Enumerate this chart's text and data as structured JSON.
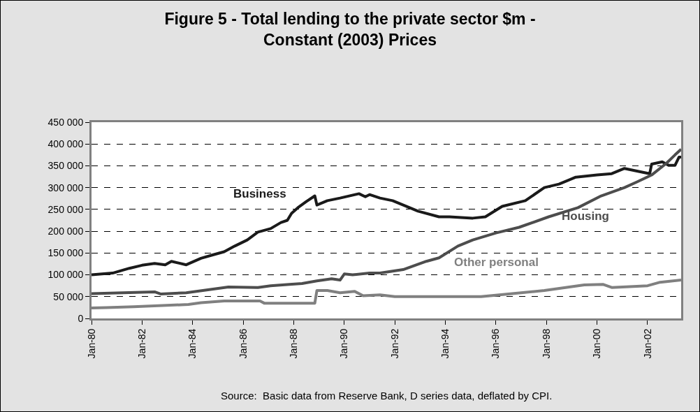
{
  "chart_data": {
    "type": "line",
    "title": "Figure 5 - Total lending to the private sector $m -\nConstant (2003) Prices",
    "annotations": [
      "Source:  Basic data from Reserve Bank, D series data, deflated by CPI."
    ],
    "xlim": [
      "1980-01",
      "2003-05"
    ],
    "xticks": [
      {
        "value": "1980-01",
        "label": "Jan-80"
      },
      {
        "value": "1982-01",
        "label": "Jan-82"
      },
      {
        "value": "1984-01",
        "label": "Jan-84"
      },
      {
        "value": "1986-01",
        "label": "Jan-86"
      },
      {
        "value": "1988-01",
        "label": "Jan-88"
      },
      {
        "value": "1990-01",
        "label": "Jan-90"
      },
      {
        "value": "1992-01",
        "label": "Jan-92"
      },
      {
        "value": "1994-01",
        "label": "Jan-94"
      },
      {
        "value": "1996-01",
        "label": "Jan-96"
      },
      {
        "value": "1998-01",
        "label": "Jan-98"
      },
      {
        "value": "2000-01",
        "label": "Jan-00"
      },
      {
        "value": "2002-01",
        "label": "Jan-02"
      }
    ],
    "ylim": [
      0,
      450000
    ],
    "yticks": [
      {
        "value": 0,
        "label": "0"
      },
      {
        "value": 50000,
        "label": "50 000"
      },
      {
        "value": 100000,
        "label": "100 000"
      },
      {
        "value": 150000,
        "label": "150 000"
      },
      {
        "value": 200000,
        "label": "200 000"
      },
      {
        "value": 250000,
        "label": "250 000"
      },
      {
        "value": 300000,
        "label": "300 000"
      },
      {
        "value": 350000,
        "label": "350 000"
      },
      {
        "value": 400000,
        "label": "400 000"
      },
      {
        "value": 450000,
        "label": "450 000"
      }
    ],
    "grid": "y",
    "legend": false,
    "line_style": "solid",
    "marker": "none",
    "series": [
      {
        "name": "Business",
        "color": "#1a1a1a",
        "x": [
          "1980-01",
          "1980-11",
          "1981-07",
          "1982-01",
          "1982-07",
          "1982-12",
          "1983-03",
          "1983-10",
          "1984-05",
          "1984-10",
          "1985-04",
          "1985-09",
          "1986-03",
          "1986-08",
          "1987-02",
          "1987-07",
          "1987-10",
          "1987-12",
          "1988-03",
          "1988-07",
          "1988-11",
          "1988-12",
          "1989-05",
          "1989-11",
          "1990-08",
          "1990-11",
          "1991-01",
          "1991-06",
          "1991-12",
          "1992-09",
          "1992-12",
          "1993-10",
          "1994-03",
          "1995-02",
          "1995-08",
          "1996-04",
          "1997-03",
          "1997-12",
          "1998-07",
          "1999-03",
          "2000-01",
          "2000-08",
          "2001-02",
          "2001-08",
          "2002-02",
          "2002-03",
          "2002-08",
          "2002-11",
          "2003-02",
          "2003-04",
          "2003-05"
        ],
        "values": [
          100000,
          104000,
          115000,
          122000,
          126000,
          123000,
          131000,
          123000,
          138000,
          145000,
          153000,
          166000,
          180000,
          198000,
          206000,
          220000,
          225000,
          241000,
          254000,
          268000,
          281000,
          260000,
          270000,
          276000,
          286000,
          279000,
          284000,
          276000,
          270000,
          252000,
          246000,
          233000,
          233000,
          230000,
          233000,
          257000,
          270000,
          300000,
          308000,
          324000,
          329000,
          332000,
          344000,
          338000,
          332000,
          354000,
          359000,
          351000,
          351000,
          370000,
          370000
        ]
      },
      {
        "name": "Housing",
        "color": "#4d4d4d",
        "x": [
          "1980-01",
          "1982-07",
          "1982-10",
          "1983-10",
          "1985-06",
          "1986-08",
          "1987-02",
          "1987-11",
          "1988-05",
          "1988-12",
          "1989-07",
          "1989-11",
          "1990-01",
          "1990-05",
          "1991-01",
          "1991-06",
          "1992-05",
          "1993-04",
          "1993-10",
          "1994-07",
          "1995-02",
          "1996-01",
          "1996-12",
          "1998-02",
          "1999-04",
          "2000-03",
          "2001-02",
          "2001-08",
          "2002-03",
          "2002-10",
          "2003-02",
          "2003-05"
        ],
        "values": [
          57000,
          61000,
          56000,
          59000,
          72000,
          71000,
          75000,
          78000,
          80000,
          86000,
          91000,
          88000,
          102000,
          100000,
          104000,
          104000,
          112000,
          131000,
          139000,
          166000,
          180000,
          196000,
          209000,
          233000,
          254000,
          281000,
          300000,
          313000,
          329000,
          356000,
          375000,
          388000
        ]
      },
      {
        "name": "Other personal",
        "color": "#808080",
        "x": [
          "1980-01",
          "1980-08",
          "1981-09",
          "1983-11",
          "1984-05",
          "1985-04",
          "1986-09",
          "1986-11",
          "1988-11",
          "1988-12",
          "1989-05",
          "1989-11",
          "1990-06",
          "1990-10",
          "1991-06",
          "1992-01",
          "1995-06",
          "1996-07",
          "1997-12",
          "1999-07",
          "2000-04",
          "2000-08",
          "2002-01",
          "2002-07",
          "2003-05"
        ],
        "values": [
          24000,
          25000,
          27000,
          32000,
          36000,
          40000,
          40000,
          35000,
          35000,
          64000,
          64000,
          59000,
          62000,
          52000,
          54000,
          50000,
          50000,
          56000,
          64000,
          77000,
          78000,
          71000,
          75000,
          83000,
          88000
        ]
      }
    ]
  }
}
